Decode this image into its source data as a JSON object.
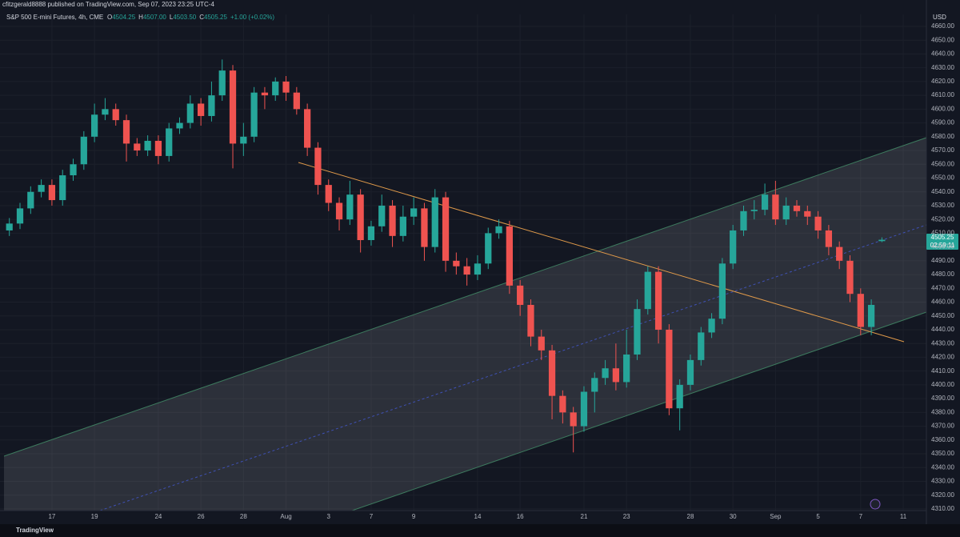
{
  "header": {
    "published": "cfitzgerald8888 published on TradingView.com, Sep 07, 2023 23:25 UTC-4",
    "brand": "TradingView"
  },
  "chart_data": {
    "type": "candlestick",
    "title": "S&P 500 E-mini Futures, 4h, CME",
    "ohlc_legend": [
      {
        "label": "O",
        "value": "4504.25"
      },
      {
        "label": "H",
        "value": "4507.00"
      },
      {
        "label": "L",
        "value": "4503.50"
      },
      {
        "label": "C",
        "value": "4505.25"
      }
    ],
    "change": "+1.00 (+0.02%)",
    "currency": "USD",
    "last_price_label": "4505.25",
    "countdown": "02:59:11",
    "up_color": "#26a69a",
    "down_color": "#ef5350",
    "grid": true,
    "xlim": [
      -2.44,
      41.09
    ],
    "ylim": [
      4308.8,
      4668.7
    ],
    "xticks": [
      {
        "value": 0,
        "label": "17"
      },
      {
        "value": 2,
        "label": "19"
      },
      {
        "value": 5,
        "label": "24"
      },
      {
        "value": 7,
        "label": "26"
      },
      {
        "value": 9,
        "label": "28"
      },
      {
        "value": 11,
        "label": "Aug"
      },
      {
        "value": 13,
        "label": "3"
      },
      {
        "value": 15,
        "label": "7"
      },
      {
        "value": 17,
        "label": "9"
      },
      {
        "value": 20,
        "label": "14"
      },
      {
        "value": 22,
        "label": "16"
      },
      {
        "value": 25,
        "label": "21"
      },
      {
        "value": 27,
        "label": "23"
      },
      {
        "value": 30,
        "label": "28"
      },
      {
        "value": 32,
        "label": "30"
      },
      {
        "value": 34,
        "label": "Sep"
      },
      {
        "value": 36,
        "label": "5"
      },
      {
        "value": 38,
        "label": "7"
      },
      {
        "value": 40,
        "label": "11"
      }
    ],
    "yticks": [
      {
        "value": 4310,
        "label": "4310.00"
      },
      {
        "value": 4320,
        "label": "4320.00"
      },
      {
        "value": 4330,
        "label": "4330.00"
      },
      {
        "value": 4340,
        "label": "4340.00"
      },
      {
        "value": 4350,
        "label": "4350.00"
      },
      {
        "value": 4360,
        "label": "4360.00"
      },
      {
        "value": 4370,
        "label": "4370.00"
      },
      {
        "value": 4380,
        "label": "4380.00"
      },
      {
        "value": 4390,
        "label": "4390.00"
      },
      {
        "value": 4400,
        "label": "4400.00"
      },
      {
        "value": 4410,
        "label": "4410.00"
      },
      {
        "value": 4420,
        "label": "4420.00"
      },
      {
        "value": 4430,
        "label": "4430.00"
      },
      {
        "value": 4440,
        "label": "4440.00"
      },
      {
        "value": 4450,
        "label": "4450.00"
      },
      {
        "value": 4460,
        "label": "4460.00"
      },
      {
        "value": 4470,
        "label": "4470.00"
      },
      {
        "value": 4480,
        "label": "4480.00"
      },
      {
        "value": 4490,
        "label": "4490.00"
      },
      {
        "value": 4500,
        "label": "4500.00"
      },
      {
        "value": 4510,
        "label": "4510.00"
      },
      {
        "value": 4520,
        "label": "4520.00"
      },
      {
        "value": 4530,
        "label": "4530.00"
      },
      {
        "value": 4540,
        "label": "4540.00"
      },
      {
        "value": 4550,
        "label": "4550.00"
      },
      {
        "value": 4560,
        "label": "4560.00"
      },
      {
        "value": 4570,
        "label": "4570.00"
      },
      {
        "value": 4580,
        "label": "4580.00"
      },
      {
        "value": 4590,
        "label": "4590.00"
      },
      {
        "value": 4600,
        "label": "4600.00"
      },
      {
        "value": 4610,
        "label": "4610.00"
      },
      {
        "value": 4620,
        "label": "4620.00"
      },
      {
        "value": 4630,
        "label": "4630.00"
      },
      {
        "value": 4640,
        "label": "4640.00"
      },
      {
        "value": 4650,
        "label": "4650.00"
      },
      {
        "value": 4660,
        "label": "4660.00"
      }
    ],
    "x": [
      -2,
      -1.5,
      -1,
      -0.5,
      0,
      0.5,
      1,
      1.5,
      2,
      2.5,
      3,
      3.5,
      4,
      4.5,
      5,
      5.5,
      6,
      6.5,
      7,
      7.5,
      8,
      8.5,
      9,
      9.5,
      10,
      10.5,
      11,
      11.5,
      12,
      12.5,
      13,
      13.5,
      14,
      14.5,
      15,
      15.5,
      16,
      16.5,
      17,
      17.5,
      18,
      18.5,
      19,
      19.5,
      20,
      20.5,
      21,
      21.5,
      22,
      22.5,
      23,
      23.5,
      24,
      24.5,
      25,
      25.5,
      26,
      26.5,
      27,
      27.5,
      28,
      28.5,
      29,
      29.5,
      30,
      30.5,
      31,
      31.5,
      32,
      32.5,
      33,
      33.5,
      34,
      34.5,
      35,
      35.5,
      36,
      36.5,
      37,
      37.5,
      38,
      38.5,
      39
    ],
    "open": [
      4512,
      4517,
      4528,
      4540,
      4545,
      4534,
      4552,
      4560,
      4580,
      4596,
      4600,
      4592,
      4575,
      4570,
      4577,
      4566,
      4586,
      4590,
      4604,
      4595,
      4610,
      4628,
      4575,
      4580,
      4612,
      4610,
      4620,
      4612,
      4600,
      4572,
      4545,
      4532,
      4520,
      4538,
      4505,
      4515,
      4530,
      4508,
      4522,
      4528,
      4500,
      4536,
      4490,
      4486,
      4480,
      4488,
      4510,
      4515,
      4472,
      4458,
      4435,
      4425,
      4392,
      4380,
      4370,
      4395,
      4405,
      4412,
      4402,
      4422,
      4455,
      4482,
      4440,
      4383,
      4400,
      4418,
      4438,
      4448,
      4488,
      4512,
      4526,
      4527,
      4538,
      4520,
      4530,
      4526,
      4522,
      4512,
      4500,
      4490,
      4466,
      4442,
      4504.25
    ],
    "high": [
      4521,
      4532,
      4544,
      4549,
      4549,
      4556,
      4564,
      4584,
      4604,
      4608,
      4604,
      4596,
      4579,
      4581,
      4581,
      4590,
      4594,
      4610,
      4608,
      4620,
      4636,
      4632,
      4590,
      4616,
      4616,
      4623,
      4624,
      4616,
      4604,
      4576,
      4549,
      4536,
      4548,
      4542,
      4519,
      4538,
      4534,
      4530,
      4536,
      4532,
      4542,
      4540,
      4496,
      4492,
      4494,
      4514,
      4520,
      4519,
      4476,
      4462,
      4440,
      4429,
      4396,
      4384,
      4399,
      4409,
      4418,
      4430,
      4440,
      4462,
      4486,
      4486,
      4444,
      4404,
      4422,
      4442,
      4452,
      4492,
      4516,
      4530,
      4534,
      4546,
      4548,
      4536,
      4534,
      4530,
      4526,
      4516,
      4504,
      4494,
      4470,
      4462,
      4507
    ],
    "low": [
      4508,
      4513,
      4524,
      4536,
      4530,
      4530,
      4548,
      4556,
      4576,
      4592,
      4588,
      4562,
      4566,
      4566,
      4560,
      4562,
      4582,
      4586,
      4588,
      4591,
      4606,
      4557,
      4566,
      4576,
      4600,
      4606,
      4606,
      4596,
      4566,
      4538,
      4526,
      4512,
      4516,
      4496,
      4501,
      4511,
      4500,
      4504,
      4516,
      4490,
      4496,
      4482,
      4480,
      4472,
      4476,
      4484,
      4506,
      4466,
      4450,
      4428,
      4418,
      4375,
      4372,
      4351,
      4366,
      4380,
      4400,
      4396,
      4398,
      4418,
      4451,
      4430,
      4378,
      4367,
      4396,
      4414,
      4434,
      4444,
      4484,
      4508,
      4520,
      4523,
      4516,
      4516,
      4522,
      4516,
      4506,
      4494,
      4484,
      4460,
      4436,
      4436,
      4503.5
    ],
    "close": [
      4517,
      4528,
      4540,
      4545,
      4534,
      4552,
      4560,
      4580,
      4596,
      4600,
      4592,
      4575,
      4570,
      4577,
      4566,
      4586,
      4590,
      4604,
      4595,
      4610,
      4628,
      4575,
      4580,
      4612,
      4610,
      4620,
      4612,
      4600,
      4572,
      4545,
      4532,
      4520,
      4538,
      4505,
      4515,
      4530,
      4508,
      4522,
      4528,
      4500,
      4536,
      4490,
      4486,
      4480,
      4488,
      4510,
      4515,
      4472,
      4458,
      4435,
      4425,
      4392,
      4380,
      4370,
      4395,
      4405,
      4412,
      4402,
      4422,
      4455,
      4482,
      4440,
      4383,
      4400,
      4418,
      4438,
      4448,
      4488,
      4512,
      4526,
      4527,
      4538,
      4520,
      4530,
      4526,
      4522,
      4512,
      4500,
      4490,
      4466,
      4442,
      4458,
      4505.25
    ]
  }
}
